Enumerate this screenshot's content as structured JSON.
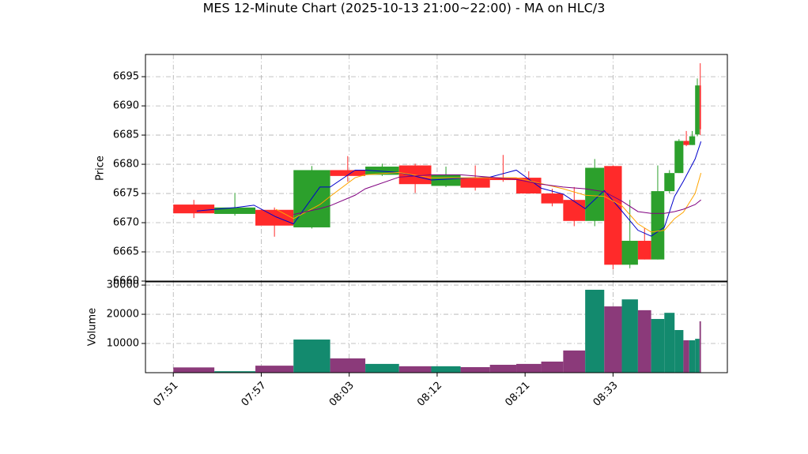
{
  "chart_data": [
    {
      "type": "candlestick",
      "title": "MES 12-Minute Chart (2025-10-13 21:00~22:00) - MA on HLC/3",
      "ylabel": "Price",
      "edges": [
        0,
        2.8,
        5.6,
        8.2,
        10.7,
        13.1,
        15.4,
        17.6,
        19.6,
        21.6,
        23.4,
        25.1,
        26.6,
        28.1,
        29.4,
        30.6,
        31.7,
        32.6,
        33.5,
        34.2,
        34.8,
        35.2,
        35.6,
        35.9,
        36
      ],
      "open": [
        6673.1,
        6671.5,
        6672.2,
        6669.2,
        6679.0,
        6678.2,
        6679.8,
        6676.3,
        6677.7,
        6677.7,
        6677.7,
        6675.0,
        6673.9,
        6670.3,
        6679.7,
        6662.8,
        6666.9,
        6663.7,
        6675.4,
        6678.5,
        6684.0,
        6683.3,
        6685.1,
        6693.5
      ],
      "high": [
        6673.9,
        6675.1,
        6672.6,
        6679.7,
        6681.4,
        6680.1,
        6680.1,
        6679.6,
        6679.8,
        6681.6,
        6678.8,
        6675.8,
        6676.1,
        6680.9,
        6679.8,
        6673.9,
        6669.1,
        6679.8,
        6679.0,
        6684.3,
        6685.7,
        6685.7,
        6694.7,
        6697.3
      ],
      "low": [
        6670.8,
        6671.2,
        6667.6,
        6669.0,
        6677.0,
        6678.0,
        6675.1,
        6676.1,
        6675.5,
        6677.0,
        6675.0,
        6672.8,
        6669.4,
        6669.4,
        6662.0,
        6662.2,
        6663.7,
        6663.7,
        6675.0,
        6678.5,
        6683.1,
        6683.3,
        6684.8,
        6685.0
      ],
      "close": [
        6671.6,
        6672.6,
        6669.5,
        6679.0,
        6678.0,
        6679.6,
        6676.6,
        6678.2,
        6676.0,
        6677.3,
        6675.0,
        6673.3,
        6670.3,
        6679.4,
        6662.8,
        6666.9,
        6663.7,
        6675.4,
        6678.5,
        6684.0,
        6683.3,
        6684.8,
        6693.5,
        6686.0
      ],
      "up_color": "#2ca02c",
      "down_color": "#ff2a2a",
      "line_x": [
        1.6,
        4.3,
        5.5,
        7.0,
        8.2,
        10.0,
        10.7,
        12.4,
        13.1,
        15.4,
        17.6,
        19.6,
        21.6,
        23.4,
        25.1,
        26.6,
        28.1,
        29.4,
        30.6,
        31.7,
        32.6,
        33.5,
        34.2,
        34.8,
        35.6,
        36.0
      ],
      "lines": [
        {
          "color": "#0000cc",
          "values": [
            6672.0,
            6672.6,
            6673.0,
            6671.0,
            6669.8,
            6676.1,
            6676.1,
            6679.0,
            6679.0,
            6678.6,
            6677.3,
            6677.6,
            6677.8,
            6679.0,
            6675.9,
            6674.9,
            6672.4,
            6675.5,
            6672.0,
            6668.7,
            6667.7,
            6669.2,
            6674.5,
            6677.1,
            6680.9,
            6683.9
          ]
        },
        {
          "color": "#ffa500",
          "values": [
            null,
            null,
            null,
            6672.3,
            6670.7,
            6673.1,
            6674.5,
            6677.7,
            6678.2,
            6678.6,
            6677.7,
            6677.7,
            6677.7,
            6677.7,
            6676.7,
            6675.8,
            6674.7,
            6674.5,
            6672.9,
            6669.8,
            6668.4,
            6668.7,
            6670.7,
            6671.8,
            6675.0,
            6678.5
          ]
        },
        {
          "color": "#800080",
          "values": [
            null,
            null,
            null,
            null,
            6671.4,
            6672.4,
            6672.9,
            6674.7,
            6675.8,
            6677.8,
            6678.2,
            6678.2,
            6677.8,
            6677.4,
            6676.6,
            6676.1,
            6675.8,
            6675.3,
            6673.7,
            6671.9,
            6671.6,
            6671.6,
            6671.9,
            6672.3,
            6673.1,
            6673.9
          ]
        }
      ],
      "xlim": [
        -1.9,
        37.8
      ],
      "ylim": [
        6660,
        6698.8
      ],
      "yticks": [
        6660,
        6665,
        6670,
        6675,
        6680,
        6685,
        6690,
        6695
      ],
      "xticks": [
        0,
        6,
        12,
        18,
        24,
        30
      ],
      "grid": true
    },
    {
      "type": "bar",
      "ylabel": "Volume",
      "edges": [
        0,
        2.8,
        5.6,
        8.2,
        10.7,
        13.1,
        15.4,
        17.6,
        19.6,
        21.6,
        23.4,
        25.1,
        26.6,
        28.1,
        29.4,
        30.6,
        31.7,
        32.6,
        33.5,
        34.2,
        34.8,
        35.2,
        35.6,
        35.9,
        36
      ],
      "values": [
        1800,
        500,
        2400,
        11350,
        4900,
        3000,
        2200,
        2200,
        1900,
        2700,
        3000,
        3800,
        7600,
        28400,
        22700,
        25100,
        21400,
        18400,
        20500,
        14600,
        11100,
        11100,
        11600,
        17600
      ],
      "up_color": "#138a6e",
      "down_color": "#8b3a7a",
      "xlim": [
        -1.9,
        37.8
      ],
      "ylim": [
        0,
        31100
      ],
      "yticks": [
        10000,
        20000,
        30000
      ],
      "xticks": [
        {
          "value": 0,
          "label": "07:51"
        },
        {
          "value": 6,
          "label": "07:57"
        },
        {
          "value": 12,
          "label": "08:03"
        },
        {
          "value": 18,
          "label": "08:12"
        },
        {
          "value": 24,
          "label": "08:21"
        },
        {
          "value": 30,
          "label": "08:33"
        }
      ],
      "grid": true
    }
  ]
}
